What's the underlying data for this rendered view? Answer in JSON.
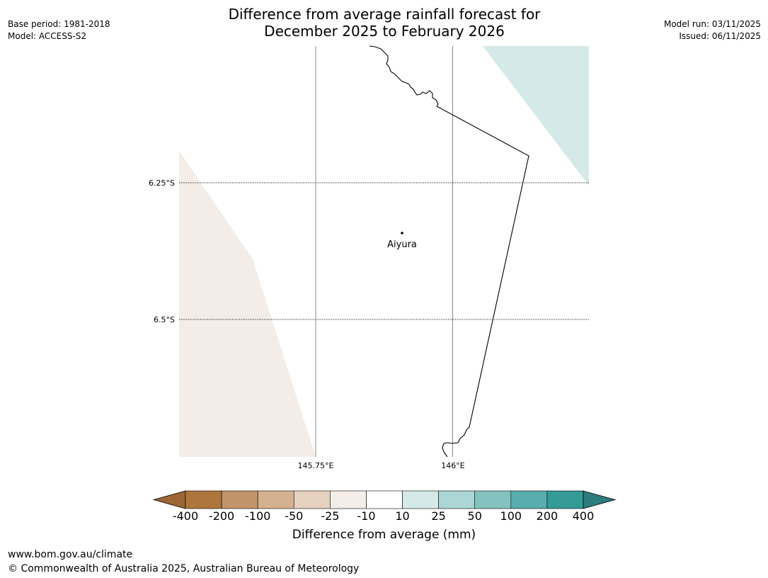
{
  "title": {
    "line1": "Difference from average rainfall forecast for",
    "line2": "December 2025 to February 2026"
  },
  "meta_left": {
    "base_period": "Base period: 1981-2018",
    "model": "Model: ACCESS-S2"
  },
  "meta_right": {
    "model_run": "Model run: 03/11/2025",
    "issued": "Issued: 06/11/2025"
  },
  "map": {
    "lat_labels": [
      "6.25°S",
      "6.5°S"
    ],
    "lon_labels": [
      "145.75°E",
      "146°E"
    ],
    "place": "Aiyura",
    "fill_colors": {
      "light_teal": "#d5e9e8",
      "light_brown": "#f4ece6"
    }
  },
  "colorbar": {
    "title": "Difference from average (mm)",
    "labels": [
      "-400",
      "-200",
      "-100",
      "-50",
      "-25",
      "-10",
      "10",
      "25",
      "50",
      "100",
      "200",
      "400"
    ],
    "colors": [
      "#9c6634",
      "#ae763c",
      "#c2946a",
      "#d4b290",
      "#e6d1bf",
      "#f5ede7",
      "#ffffff",
      "#d6e9e9",
      "#acd6d5",
      "#83c2be",
      "#58aeac",
      "#349b97",
      "#2b7c7a"
    ]
  },
  "footer": {
    "url": "www.bom.gov.au/climate",
    "copyright": "© Commonwealth of Australia 2025, Australian Bureau of Meteorology"
  }
}
